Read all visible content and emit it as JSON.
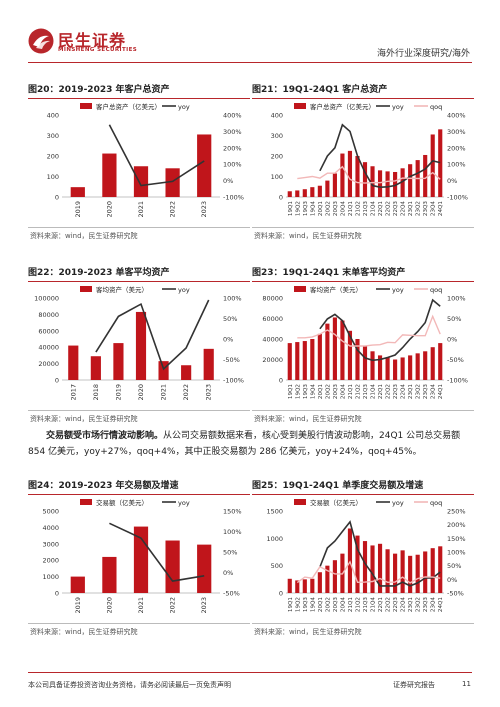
{
  "header": {
    "logo_cn": "民生证券",
    "logo_en": "MINSHENG SECURITIES",
    "section": "海外行业深度研究/海外"
  },
  "colors": {
    "bar": "#c0151b",
    "line": "#333333",
    "qoq": "#f2b8b8",
    "accent": "#b8262b"
  },
  "source_text": "资料来源：wind，民生证券研究院",
  "paragraph": {
    "lead": "交易额受市场行情波动影响。",
    "body": "从公司交易额数据来看，核心受到美股行情波动影响，24Q1 公司总交易额 854 亿美元，yoy+27%，qoq+4%，其中正股交易额为 286 亿美元，yoy+24%，qoq+45%。"
  },
  "footer": {
    "disclaimer": "本公司具备证券投资咨询业务资格，请务必阅读最后一页免责声明",
    "report": "证券研究报告",
    "page": "11"
  },
  "figures": [
    {
      "title": "图20：2019-2023 年客户总资产"
    },
    {
      "title": "图21：19Q1-24Q1 客户总资产"
    },
    {
      "title": "图22：2019-2023 单客平均资产"
    },
    {
      "title": "图23：19Q1-24Q1 末单客平均资产"
    },
    {
      "title": "图24：2019-2023 年交易额及增速"
    },
    {
      "title": "图25：19Q1-24Q1 单季度交易额及增速"
    }
  ],
  "chart_data": [
    {
      "type": "bar",
      "categories": [
        "2019",
        "2020",
        "2021",
        "2022",
        "2023"
      ],
      "series": [
        {
          "name": "客户总资产（亿美元）",
          "axis": "left",
          "kind": "bar",
          "values": [
            48,
            212,
            150,
            140,
            305
          ]
        },
        {
          "name": "yoy",
          "axis": "right",
          "kind": "line",
          "values": [
            null,
            340,
            -30,
            -5,
            120
          ]
        }
      ],
      "ylim": [
        0,
        400
      ],
      "yticks": [
        0,
        100,
        200,
        300,
        400
      ],
      "y2lim": [
        -100,
        400
      ],
      "y2ticks": [
        "-100%",
        "0%",
        "100%",
        "200%",
        "300%",
        "400%"
      ],
      "legend": "top"
    },
    {
      "type": "bar",
      "categories": [
        "19Q1",
        "19Q2",
        "19Q3",
        "19Q4",
        "20Q1",
        "20Q2",
        "20Q3",
        "20Q4",
        "21Q1",
        "21Q2",
        "21Q3",
        "21Q4",
        "22Q1",
        "22Q2",
        "22Q3",
        "22Q4",
        "23Q1",
        "23Q2",
        "23Q3",
        "23Q4",
        "24Q1"
      ],
      "series": [
        {
          "name": "客户总资产（亿美元）",
          "axis": "left",
          "kind": "bar",
          "values": [
            28,
            32,
            38,
            48,
            55,
            80,
            115,
            212,
            225,
            200,
            170,
            150,
            130,
            125,
            122,
            140,
            160,
            180,
            205,
            305,
            330
          ]
        },
        {
          "name": "yoy",
          "axis": "right",
          "kind": "line",
          "values": [
            null,
            null,
            null,
            null,
            60,
            150,
            200,
            340,
            300,
            150,
            50,
            -30,
            -40,
            -38,
            -30,
            -5,
            25,
            45,
            70,
            120,
            110
          ]
        },
        {
          "name": "qoq",
          "axis": "right",
          "kind": "line",
          "values": [
            null,
            12,
            18,
            25,
            15,
            45,
            45,
            85,
            8,
            -12,
            -15,
            -12,
            -13,
            -4,
            -2,
            15,
            14,
            13,
            14,
            49,
            8
          ]
        }
      ],
      "ylim": [
        0,
        400
      ],
      "yticks": [
        0,
        100,
        200,
        300,
        400
      ],
      "y2lim": [
        -100,
        400
      ],
      "y2ticks": [
        "-100%",
        "0%",
        "100%",
        "200%",
        "300%",
        "400%"
      ],
      "legend": "top"
    },
    {
      "type": "bar",
      "categories": [
        "2017",
        "2018",
        "2019",
        "2020",
        "2021",
        "2022",
        "2023"
      ],
      "series": [
        {
          "name": "客均资产（美元）",
          "axis": "left",
          "kind": "bar",
          "values": [
            42000,
            29000,
            45000,
            83000,
            23000,
            18000,
            38000
          ]
        },
        {
          "name": "yoy",
          "axis": "right",
          "kind": "line",
          "values": [
            null,
            -32,
            55,
            85,
            -73,
            -22,
            95
          ]
        }
      ],
      "ylim": [
        0,
        100000
      ],
      "yticks": [
        0,
        20000,
        40000,
        60000,
        80000,
        100000
      ],
      "y2lim": [
        -100,
        100
      ],
      "y2ticks": [
        "-100%",
        "-50%",
        "0%",
        "50%",
        "100%"
      ],
      "legend": "top"
    },
    {
      "type": "bar",
      "categories": [
        "19Q1",
        "19Q2",
        "19Q3",
        "19Q4",
        "20Q1",
        "20Q2",
        "20Q3",
        "20Q4",
        "21Q1",
        "21Q2",
        "21Q3",
        "21Q4",
        "22Q1",
        "22Q2",
        "22Q3",
        "22Q4",
        "23Q1",
        "23Q2",
        "23Q3",
        "23Q4",
        "24Q1"
      ],
      "series": [
        {
          "name": "客均资产（美元）",
          "axis": "left",
          "kind": "bar",
          "values": [
            36000,
            37000,
            38000,
            40000,
            45000,
            55000,
            61000,
            58000,
            48000,
            40000,
            33000,
            28000,
            24000,
            22000,
            20000,
            22000,
            24000,
            26000,
            28000,
            32000,
            36000
          ]
        },
        {
          "name": "yoy",
          "axis": "right",
          "kind": "line",
          "values": [
            null,
            null,
            null,
            null,
            25,
            49,
            60,
            45,
            7,
            -27,
            -46,
            -52,
            -50,
            -45,
            -39,
            -21,
            0,
            18,
            40,
            95,
            80
          ]
        },
        {
          "name": "qoq",
          "axis": "right",
          "kind": "line",
          "values": [
            null,
            3,
            3,
            5,
            12,
            22,
            11,
            -5,
            -17,
            -17,
            -17,
            -15,
            -14,
            -8,
            -9,
            10,
            9,
            8,
            8,
            55,
            12
          ]
        }
      ],
      "ylim": [
        0,
        80000
      ],
      "yticks": [
        0,
        20000,
        40000,
        60000,
        80000
      ],
      "y2lim": [
        -100,
        100
      ],
      "y2ticks": [
        "-100%",
        "-50%",
        "0%",
        "50%",
        "100%"
      ],
      "legend": "top"
    },
    {
      "type": "bar",
      "categories": [
        "2019",
        "2020",
        "2021",
        "2022",
        "2023"
      ],
      "series": [
        {
          "name": "交易额（亿美元）",
          "axis": "left",
          "kind": "bar",
          "values": [
            1000,
            2200,
            4050,
            3200,
            2950
          ]
        },
        {
          "name": "yoy",
          "axis": "right",
          "kind": "line",
          "values": [
            null,
            120,
            84,
            -21,
            -8
          ]
        }
      ],
      "ylim": [
        0,
        5000
      ],
      "yticks": [
        0,
        1000,
        2000,
        3000,
        4000,
        5000
      ],
      "y2lim": [
        -50,
        150
      ],
      "y2ticks": [
        "-50%",
        "0%",
        "50%",
        "100%",
        "150%"
      ],
      "legend": "top"
    },
    {
      "type": "bar",
      "categories": [
        "19Q1",
        "19Q2",
        "19Q3",
        "19Q4",
        "20Q1",
        "20Q2",
        "20Q3",
        "20Q4",
        "21Q1",
        "21Q2",
        "21Q3",
        "21Q4",
        "22Q1",
        "22Q2",
        "22Q3",
        "22Q4",
        "23Q1",
        "23Q2",
        "23Q3",
        "23Q4",
        "24Q1"
      ],
      "series": [
        {
          "name": "交易额（亿美元）",
          "axis": "left",
          "kind": "bar",
          "values": [
            260,
            230,
            250,
            260,
            380,
            500,
            600,
            720,
            1180,
            1050,
            950,
            870,
            900,
            800,
            720,
            780,
            680,
            700,
            760,
            820,
            854
          ]
        },
        {
          "name": "yoy",
          "axis": "right",
          "kind": "line",
          "values": [
            null,
            null,
            null,
            null,
            45,
            115,
            140,
            175,
            210,
            110,
            58,
            20,
            -24,
            -24,
            -24,
            -10,
            -24,
            -13,
            5,
            5,
            27
          ]
        },
        {
          "name": "qoq",
          "axis": "right",
          "kind": "line",
          "values": [
            null,
            -12,
            8,
            4,
            46,
            32,
            20,
            20,
            64,
            -11,
            -10,
            -8,
            3,
            -11,
            -10,
            8,
            -13,
            3,
            9,
            8,
            4
          ]
        }
      ],
      "ylim": [
        0,
        1500
      ],
      "yticks": [
        0,
        500,
        1000,
        1500
      ],
      "y2lim": [
        -50,
        250
      ],
      "y2ticks": [
        "-50%",
        "0%",
        "50%",
        "100%",
        "150%",
        "200%",
        "250%"
      ],
      "legend": "top"
    }
  ]
}
